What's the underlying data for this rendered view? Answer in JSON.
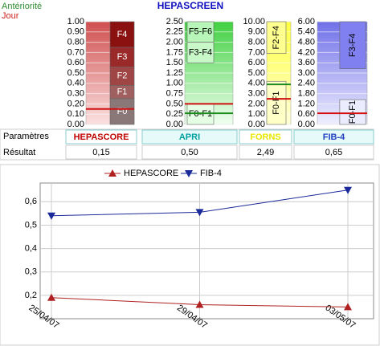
{
  "legend": {
    "previous": "Antériorité",
    "today": "Jour"
  },
  "title": "HEPASCREEN",
  "table": {
    "header": "Paramètres",
    "row_label": "Résultat"
  },
  "gauges": [
    {
      "name": "HEPASCORE",
      "name_color": "#c00000",
      "color_low": "#fbe0e0",
      "color_high": "#d05050",
      "ylim": [
        0,
        1
      ],
      "yticks": [
        {
          "value": 1,
          "label": "1.00"
        },
        {
          "value": 0.9,
          "label": "0.90"
        },
        {
          "value": 0.8,
          "label": "0.80"
        },
        {
          "value": 0.7,
          "label": "0.70"
        },
        {
          "value": 0.6,
          "label": "0.60"
        },
        {
          "value": 0.5,
          "label": "0.50"
        },
        {
          "value": 0.4,
          "label": "0.40"
        },
        {
          "value": 0.3,
          "label": "0.30"
        },
        {
          "value": 0.2,
          "label": "0.20"
        },
        {
          "value": 0.1,
          "label": "0.10"
        },
        {
          "value": 0,
          "label": "0.00"
        }
      ],
      "zones": [
        {
          "label": "F4",
          "from": 0.75,
          "to": 1,
          "color": "#8b1010"
        },
        {
          "label": "F3",
          "from": 0.56,
          "to": 0.75,
          "color": "#9a2a2a"
        },
        {
          "label": "F2",
          "from": 0.38,
          "to": 0.56,
          "color": "#a04545"
        },
        {
          "label": "F1",
          "from": 0.25,
          "to": 0.38,
          "color": "#a06060"
        },
        {
          "label": "F0",
          "from": 0,
          "to": 0.25,
          "color": "#8a7878"
        }
      ],
      "today": {
        "value": 0.15,
        "label": "0,15"
      }
    },
    {
      "name": "APRI",
      "name_color": "#00a0a0",
      "color_low": "#f0fff0",
      "color_high": "#40d040",
      "ylim": [
        0,
        2.5
      ],
      "yticks": [
        {
          "value": 2.5,
          "label": "2.50"
        },
        {
          "value": 2.25,
          "label": "2.25"
        },
        {
          "value": 2,
          "label": "2.00"
        },
        {
          "value": 1.75,
          "label": "1.75"
        },
        {
          "value": 1.5,
          "label": "1.50"
        },
        {
          "value": 1.25,
          "label": "1.25"
        },
        {
          "value": 1,
          "label": "1.00"
        },
        {
          "value": 0.75,
          "label": "0.75"
        },
        {
          "value": 0.5,
          "label": "0.50"
        },
        {
          "value": 0.25,
          "label": "0.25"
        },
        {
          "value": 0,
          "label": "0.00"
        }
      ],
      "zones": [
        {
          "label": "F5-F6",
          "from": 2,
          "to": 2.5,
          "color": "#b8f5b8"
        },
        {
          "label": "F3-F4",
          "from": 1.5,
          "to": 2,
          "color": "#c8f8c8"
        },
        {
          "label": "F0-F1",
          "from": 0,
          "to": 0.5,
          "color": "#e4ffe4"
        }
      ],
      "today": {
        "value": 0.5,
        "label": "0,50"
      },
      "previous": 0.27
    },
    {
      "name": "FORNS",
      "name_color": "#e8e800",
      "color_low": "#ffffd8",
      "color_high": "#ffff40",
      "ylim": [
        0,
        10
      ],
      "yticks": [
        {
          "value": 10,
          "label": "10.00"
        },
        {
          "value": 9,
          "label": "9.00"
        },
        {
          "value": 8,
          "label": "8.00"
        },
        {
          "value": 7,
          "label": "7.00"
        },
        {
          "value": 6,
          "label": "6.00"
        },
        {
          "value": 5,
          "label": "5.00"
        },
        {
          "value": 4,
          "label": "4.00"
        },
        {
          "value": 3,
          "label": "3.00"
        },
        {
          "value": 2,
          "label": "2.00"
        },
        {
          "value": 1,
          "label": "1.00"
        },
        {
          "value": 0,
          "label": "0.00"
        }
      ],
      "zones": [
        {
          "label": "F2-F4",
          "from": 6.9,
          "to": 10,
          "color": "#ffff90"
        },
        {
          "label": "F0-F1",
          "from": 0,
          "to": 4.2,
          "color": "#ffffc8"
        }
      ],
      "today": {
        "value": 2.49,
        "label": "2,49"
      },
      "previous": 3.9
    },
    {
      "name": "FIB-4",
      "name_color": "#2040c0",
      "color_low": "#eeeeff",
      "color_high": "#7070e8",
      "ylim": [
        0,
        6
      ],
      "yticks": [
        {
          "value": 6,
          "label": "6.00"
        },
        {
          "value": 5.4,
          "label": "5.40"
        },
        {
          "value": 4.8,
          "label": "4.80"
        },
        {
          "value": 4.2,
          "label": "4.20"
        },
        {
          "value": 3.6,
          "label": "3.60"
        },
        {
          "value": 3,
          "label": "3.00"
        },
        {
          "value": 2.4,
          "label": "2.40"
        },
        {
          "value": 1.8,
          "label": "1.80"
        },
        {
          "value": 1.2,
          "label": "1.20"
        },
        {
          "value": 0.6,
          "label": "0.60"
        },
        {
          "value": 0,
          "label": "0.00"
        }
      ],
      "zones": [
        {
          "label": "F3-F4",
          "from": 3.25,
          "to": 6,
          "color": "#8080f0"
        },
        {
          "label": "F0-F1",
          "from": 0,
          "to": 1.45,
          "color": "#ececff"
        }
      ],
      "today": {
        "value": 0.65,
        "label": "0,65"
      }
    }
  ],
  "chart_data": {
    "type": "line",
    "categories": [
      "25/04/07",
      "29/04/07",
      "03/05/07"
    ],
    "series": [
      {
        "name": "HEPASCORE",
        "color": "#b02020",
        "marker": "triangle-up",
        "values": [
          0.19,
          0.16,
          0.15
        ]
      },
      {
        "name": "FIB-4",
        "color": "#1a2a9a",
        "marker": "triangle-down",
        "values": [
          0.54,
          0.555,
          0.65
        ]
      }
    ],
    "ylim": [
      0.1,
      0.68
    ],
    "yticks": [
      {
        "value": 0.2,
        "label": "0,2"
      },
      {
        "value": 0.3,
        "label": "0,3"
      },
      {
        "value": 0.4,
        "label": "0,4"
      },
      {
        "value": 0.5,
        "label": "0,5"
      },
      {
        "value": 0.6,
        "label": "0,6"
      }
    ],
    "grid": true
  }
}
